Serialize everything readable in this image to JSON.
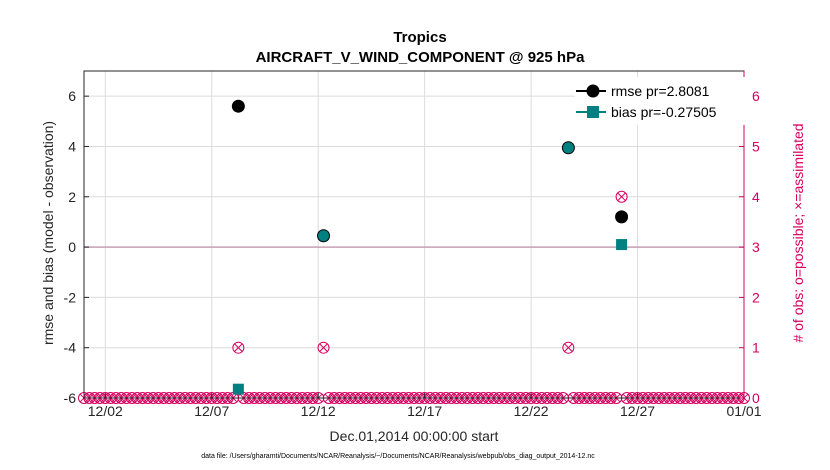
{
  "chart_data": {
    "type": "scatter",
    "title": "Tropics",
    "subtitle": "AIRCRAFT_V_WIND_COMPONENT @ 925 hPa",
    "xlabel": "Dec.01,2014 00:00:00 start",
    "ylabel": "rmse and bias (model - observation)",
    "ylabel_right": "# of obs: o=possible; ×=assimilated",
    "footnote": "data file: /Users/gharamti/Documents/NCAR/Reanalysis/~/Documents/NCAR/Reanalysis/webpub/obs_diag_output_2014-12.nc",
    "xlim": [
      0,
      31
    ],
    "ylim": [
      -6,
      7
    ],
    "ylim_right": [
      0,
      6.5
    ],
    "x_ticks": [
      {
        "value": 1,
        "label": "12/02"
      },
      {
        "value": 6,
        "label": "12/07"
      },
      {
        "value": 11,
        "label": "12/12"
      },
      {
        "value": 16,
        "label": "12/17"
      },
      {
        "value": 21,
        "label": "12/22"
      },
      {
        "value": 26,
        "label": "12/27"
      },
      {
        "value": 31,
        "label": "01/01"
      }
    ],
    "y_ticks": [
      -6,
      -4,
      -2,
      0,
      2,
      4,
      6
    ],
    "y_ticks_right": [
      0,
      1,
      2,
      3,
      4,
      5,
      6
    ],
    "grid": true,
    "legend_position": "top-right",
    "series": [
      {
        "name": "rmse pr=2.8081",
        "color": "#000000",
        "marker": "circle",
        "points": [
          {
            "x": 7.25,
            "y": 5.6
          },
          {
            "x": 11.25,
            "y": 0.45
          },
          {
            "x": 22.75,
            "y": 3.95
          },
          {
            "x": 25.25,
            "y": 1.2
          }
        ]
      },
      {
        "name": "bias pr=-0.27505",
        "color": "#008080",
        "marker": "square",
        "points": [
          {
            "x": 7.25,
            "y": -5.65
          },
          {
            "x": 11.25,
            "y": 0.45
          },
          {
            "x": 22.75,
            "y": 3.95
          },
          {
            "x": 25.25,
            "y": 0.1
          }
        ]
      }
    ],
    "obs_count": {
      "color": "#d6005f",
      "x_start": 0,
      "x_end": 31,
      "x_step": 0.25,
      "nonzero": [
        {
          "x": 7.25,
          "count": 1
        },
        {
          "x": 11.25,
          "count": 1
        },
        {
          "x": 22.75,
          "count": 1
        },
        {
          "x": 25.25,
          "count": 4
        }
      ]
    },
    "zero_line_color": "#c8a0b4"
  }
}
